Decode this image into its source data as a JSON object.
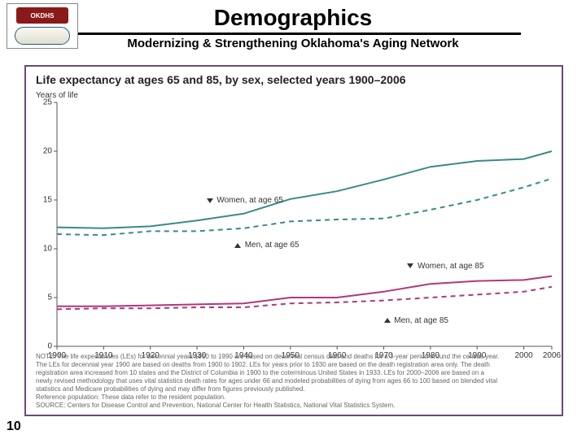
{
  "header": {
    "title": "Demographics",
    "subtitle": "Modernizing & Strengthening Oklahoma's Aging Network",
    "logo_text": "OKDHS",
    "logo_bg": "#8a1a1a"
  },
  "slide_number": "10",
  "chart": {
    "type": "line",
    "title": "Life expectancy at ages 65 and 85, by sex, selected years 1900–2006",
    "y_axis_label": "Years of life",
    "frame_border_color": "#6a4a7a",
    "plot_bg": "#ffffff",
    "axis_color": "#555555",
    "xlim": [
      1900,
      2006
    ],
    "ylim": [
      0,
      25
    ],
    "xticks": [
      1900,
      1910,
      1920,
      1930,
      1940,
      1950,
      1960,
      1970,
      1980,
      1990,
      2000,
      2006
    ],
    "xtick_labels": [
      "1900",
      "1910",
      "1920",
      "1930",
      "1940",
      "1950",
      "1960",
      "1970",
      "1980",
      "1990",
      "2000",
      "2006"
    ],
    "yticks": [
      0,
      5,
      10,
      15,
      20,
      25
    ],
    "line_width": 2,
    "dash_pattern": "6 5",
    "label_fontsize": 10,
    "title_fontsize": 14,
    "series": [
      {
        "name": "Women, at age 65",
        "color": "#3a8a88",
        "dash": false,
        "label_x": 1932,
        "label_y": 14.9,
        "arrow": "down",
        "points": [
          [
            1900,
            12.2
          ],
          [
            1910,
            12.1
          ],
          [
            1920,
            12.3
          ],
          [
            1930,
            12.9
          ],
          [
            1940,
            13.6
          ],
          [
            1950,
            15.1
          ],
          [
            1960,
            15.9
          ],
          [
            1970,
            17.1
          ],
          [
            1980,
            18.4
          ],
          [
            1990,
            19.0
          ],
          [
            2000,
            19.2
          ],
          [
            2006,
            20.0
          ]
        ]
      },
      {
        "name": "Men, at age 65",
        "color": "#3a8a88",
        "dash": true,
        "label_x": 1938,
        "label_y": 10.3,
        "arrow": "up",
        "points": [
          [
            1900,
            11.5
          ],
          [
            1910,
            11.4
          ],
          [
            1920,
            11.8
          ],
          [
            1930,
            11.8
          ],
          [
            1940,
            12.1
          ],
          [
            1950,
            12.8
          ],
          [
            1960,
            13.0
          ],
          [
            1970,
            13.1
          ],
          [
            1980,
            14.0
          ],
          [
            1990,
            15.0
          ],
          [
            2000,
            16.3
          ],
          [
            2006,
            17.2
          ]
        ]
      },
      {
        "name": "Women, at age 85",
        "color": "#b03878",
        "dash": false,
        "label_x": 1975,
        "label_y": 8.2,
        "arrow": "down",
        "points": [
          [
            1900,
            4.1
          ],
          [
            1910,
            4.1
          ],
          [
            1920,
            4.2
          ],
          [
            1930,
            4.3
          ],
          [
            1940,
            4.4
          ],
          [
            1950,
            5.0
          ],
          [
            1960,
            5.0
          ],
          [
            1970,
            5.6
          ],
          [
            1980,
            6.4
          ],
          [
            1990,
            6.7
          ],
          [
            2000,
            6.8
          ],
          [
            2006,
            7.2
          ]
        ]
      },
      {
        "name": "Men, at age 85",
        "color": "#b03878",
        "dash": true,
        "label_x": 1970,
        "label_y": 2.6,
        "arrow": "up",
        "points": [
          [
            1900,
            3.8
          ],
          [
            1910,
            3.9
          ],
          [
            1920,
            3.9
          ],
          [
            1930,
            4.0
          ],
          [
            1940,
            4.0
          ],
          [
            1950,
            4.4
          ],
          [
            1960,
            4.5
          ],
          [
            1970,
            4.7
          ],
          [
            1980,
            5.0
          ],
          [
            1990,
            5.3
          ],
          [
            2000,
            5.6
          ],
          [
            2006,
            6.1
          ]
        ]
      }
    ],
    "note_lines": [
      "NOTE: The life expectancies (LEs) for decennial years 1910 to 1990 are based on decennial census data and deaths for a 3-year period around the census year.",
      "The LEs for decennial year 1900 are based on deaths from 1900 to 1902. LEs for years prior to 1930 are based on the death registration area only. The death",
      "registration area increased from 10 states and the District of Columbia in 1900 to the coterminous United States in 1933. LEs for 2000–2006 are based on a",
      "newly revised methodology that uses vital statistics death rates for ages under 66 and modeled probabilities of dying from ages 66 to 100 based on blended vital",
      "statistics and Medicare probabilities of dying and may differ from figures previously published.",
      "Reference population: These data refer to the resident population.",
      "SOURCE: Centers for Disease Control and Prevention, National Center for Health Statistics, National Vital Statistics System."
    ]
  }
}
